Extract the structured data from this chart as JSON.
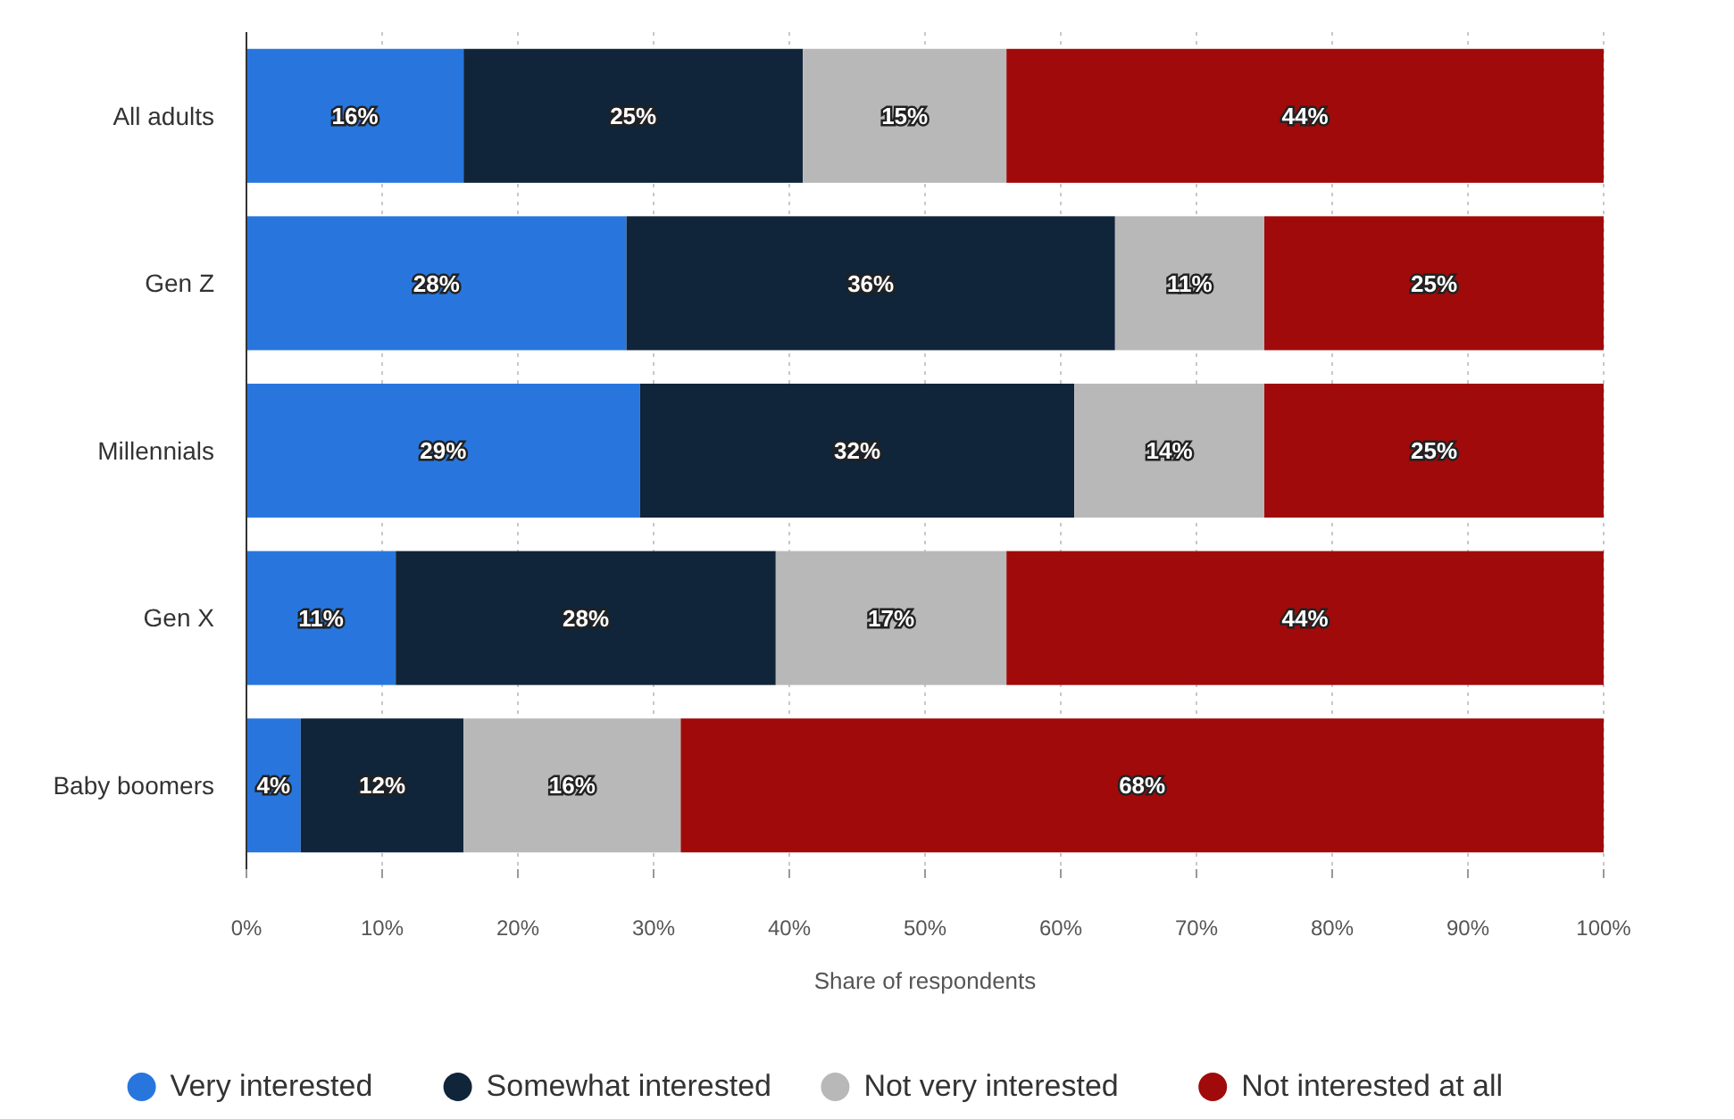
{
  "chart_data": {
    "type": "bar",
    "orientation": "horizontal",
    "stacked": true,
    "xlabel": "Share of respondents",
    "categories": [
      "All adults",
      "Gen Z",
      "Millennials",
      "Gen X",
      "Baby boomers"
    ],
    "series": [
      {
        "name": "Very interested",
        "color": "#2876dd",
        "values": [
          16,
          28,
          29,
          11,
          4
        ],
        "value_labels": [
          "16%",
          "28%",
          "29%",
          "11%",
          "4%"
        ]
      },
      {
        "name": "Somewhat interested",
        "color": "#10243a",
        "values": [
          25,
          36,
          32,
          28,
          12
        ],
        "value_labels": [
          "25%",
          "36%",
          "32%",
          "28%",
          "12%"
        ]
      },
      {
        "name": "Not very interested",
        "color": "#b8b8b8",
        "values": [
          15,
          11,
          14,
          17,
          16
        ],
        "value_labels": [
          "15%",
          "11%",
          "14%",
          "17%",
          "16%"
        ]
      },
      {
        "name": "Not interested at all",
        "color": "#a10a0a",
        "values": [
          44,
          25,
          25,
          44,
          68
        ],
        "value_labels": [
          "44%",
          "25%",
          "25%",
          "44%",
          "68%"
        ]
      }
    ],
    "xlim": [
      0,
      100
    ],
    "xticks": [
      {
        "value": 0,
        "label": "0%"
      },
      {
        "value": 10,
        "label": "10%"
      },
      {
        "value": 20,
        "label": "20%"
      },
      {
        "value": 30,
        "label": "30%"
      },
      {
        "value": 40,
        "label": "40%"
      },
      {
        "value": 50,
        "label": "50%"
      },
      {
        "value": 60,
        "label": "60%"
      },
      {
        "value": 70,
        "label": "70%"
      },
      {
        "value": 80,
        "label": "80%"
      },
      {
        "value": 90,
        "label": "90%"
      },
      {
        "value": 100,
        "label": "100%"
      }
    ],
    "grid": "x",
    "legend": "bottom"
  }
}
